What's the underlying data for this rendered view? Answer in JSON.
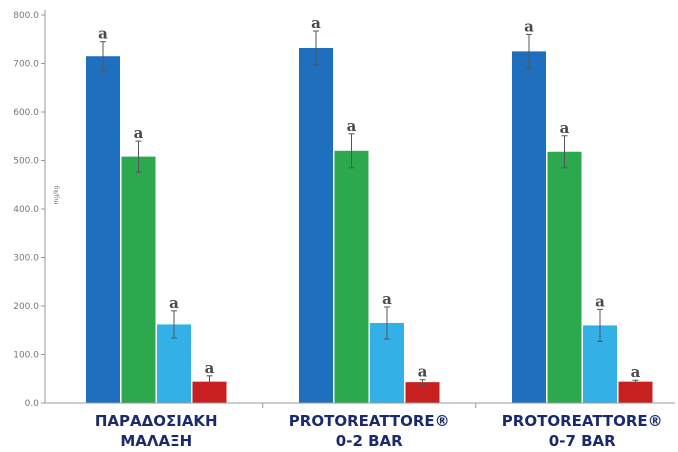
{
  "chart_data": {
    "type": "bar",
    "title": "",
    "xlabel": "",
    "ylabel": "mg/kg",
    "ylim": [
      0,
      800
    ],
    "yticks": [
      "0.0",
      "100.0",
      "200.0",
      "300.0",
      "400.0",
      "500.0",
      "600.0",
      "700.0",
      "800.0"
    ],
    "grid": false,
    "legend": "none",
    "categories": [
      [
        "ΠΑΡΑΔΟΣΙΑΚΗ",
        "ΜΑΛΑΞΗ"
      ],
      [
        "PROTOREATTORE®",
        "0-2 BAR"
      ],
      [
        "PROTOREATTORE®",
        "0-7 BAR"
      ]
    ],
    "series": [
      {
        "color": "#1f6fbf",
        "values": [
          715,
          732,
          725
        ],
        "errors": [
          30,
          35,
          35
        ],
        "labels": [
          "a",
          "a",
          "a"
        ]
      },
      {
        "color": "#2ca94f",
        "values": [
          508,
          520,
          518
        ],
        "errors": [
          32,
          35,
          33
        ],
        "labels": [
          "a",
          "a",
          "a"
        ]
      },
      {
        "color": "#33b0e6",
        "values": [
          162,
          165,
          160
        ],
        "errors": [
          28,
          33,
          33
        ],
        "labels": [
          "a",
          "a",
          "a"
        ]
      },
      {
        "color": "#c8201f",
        "values": [
          44,
          43,
          44
        ],
        "errors": [
          12,
          5,
          3
        ],
        "labels": [
          "a",
          "a",
          "a"
        ]
      }
    ]
  }
}
